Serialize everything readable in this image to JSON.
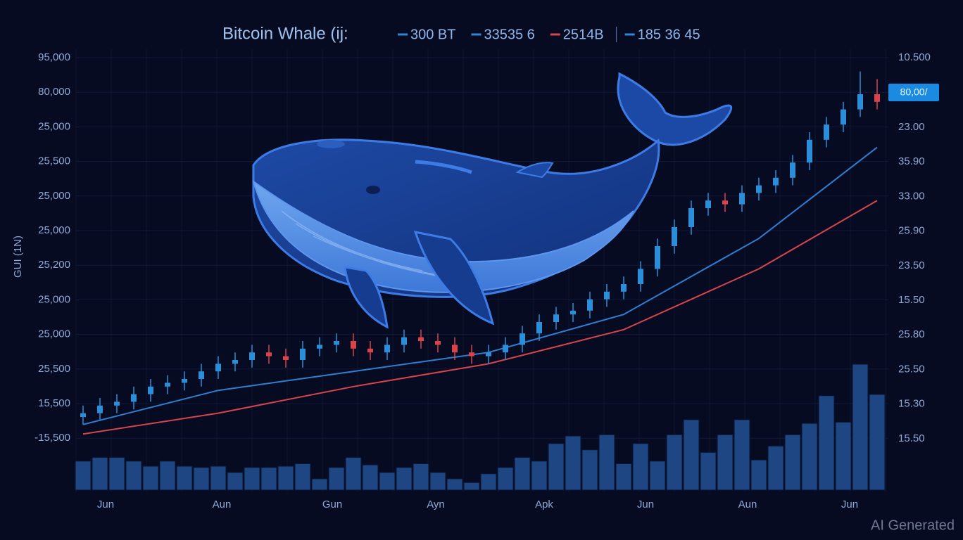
{
  "chart_data": {
    "type": "candlestick",
    "title": "Bitcoin Whale (ij:",
    "legend": [
      {
        "name": "300 BT",
        "color": "#2f86d6"
      },
      {
        "name": "33535 6",
        "color": "#2f86d6"
      },
      {
        "name": "2514B",
        "color": "#d8444c"
      },
      {
        "name": "185 36 45",
        "color": "#2f86d6"
      }
    ],
    "y_label": "GUI (1N)",
    "left_axis_labels": [
      "95,000",
      "80,000",
      "25,000",
      "25,500",
      "25,000",
      "25,000",
      "25,200",
      "25,000",
      "25,000",
      "25,500",
      "15,500",
      "-15,500"
    ],
    "right_axis_labels": [
      "10.500",
      "23.00",
      "35.90",
      "33.00",
      "25.90",
      "23.50",
      "15.50",
      "25.80",
      "25.50",
      "15.30",
      "15.50"
    ],
    "price_tag": "80,00/",
    "x_labels": [
      "Jun",
      "Aun",
      "Gun",
      "Ayn",
      "Apk",
      "Jun",
      "Aun",
      "Jun"
    ],
    "watermark": "AI Generated",
    "ylim": [
      0,
      100
    ],
    "up_color": "#2a8fd8",
    "down_color": "#d9434a",
    "open": [
      5,
      6,
      8,
      9,
      11,
      13,
      14,
      15,
      17,
      19,
      20,
      22,
      21,
      20,
      23,
      24,
      25,
      23,
      22,
      24,
      26,
      25,
      24,
      22,
      21,
      22,
      24,
      27,
      30,
      32,
      33,
      36,
      38,
      40,
      44,
      50,
      55,
      60,
      62,
      61,
      64,
      66,
      68,
      72,
      78,
      82,
      86,
      90
    ],
    "high": [
      8,
      10,
      11,
      13,
      15,
      16,
      17,
      19,
      21,
      22,
      24,
      24,
      23,
      25,
      26,
      27,
      27,
      25,
      26,
      28,
      28,
      27,
      26,
      24,
      24,
      26,
      29,
      32,
      34,
      35,
      38,
      40,
      42,
      46,
      52,
      57,
      62,
      64,
      64,
      66,
      68,
      70,
      74,
      80,
      84,
      88,
      96,
      94
    ],
    "low": [
      3,
      4,
      6,
      7,
      9,
      11,
      12,
      13,
      15,
      17,
      18,
      19,
      18,
      18,
      21,
      22,
      21,
      20,
      20,
      22,
      23,
      22,
      20,
      19,
      19,
      20,
      22,
      25,
      28,
      30,
      31,
      34,
      36,
      38,
      42,
      48,
      53,
      58,
      59,
      59,
      62,
      64,
      66,
      70,
      76,
      80,
      84,
      86
    ],
    "close": [
      6,
      8,
      9,
      11,
      13,
      14,
      15,
      17,
      19,
      20,
      22,
      21,
      20,
      23,
      24,
      25,
      23,
      22,
      24,
      26,
      25,
      24,
      22,
      21,
      22,
      24,
      27,
      30,
      32,
      33,
      36,
      38,
      40,
      44,
      50,
      55,
      60,
      62,
      61,
      64,
      66,
      68,
      72,
      78,
      82,
      86,
      90,
      88
    ],
    "moving_averages": [
      {
        "color": "#2f7fd0",
        "x": [
          0,
          8,
          16,
          24,
          32,
          40,
          47
        ],
        "values": [
          3,
          12,
          17,
          22,
          32,
          52,
          76
        ]
      },
      {
        "color": "#d8444c",
        "x": [
          0,
          8,
          16,
          24,
          32,
          40,
          47
        ],
        "values": [
          0.5,
          6,
          13,
          19,
          28,
          44,
          62
        ]
      }
    ],
    "volume_color": "#1d4683",
    "volume_ylim": [
      0,
      100
    ],
    "volume": [
      23,
      26,
      26,
      23,
      19,
      23,
      19,
      18,
      19,
      14,
      18,
      18,
      19,
      21,
      9,
      18,
      26,
      20,
      14,
      18,
      21,
      14,
      9,
      6,
      13,
      18,
      26,
      23,
      37,
      43,
      32,
      44,
      21,
      37,
      23,
      44,
      56,
      30,
      44,
      56,
      24,
      35,
      44,
      53,
      75,
      54,
      100,
      76
    ]
  }
}
